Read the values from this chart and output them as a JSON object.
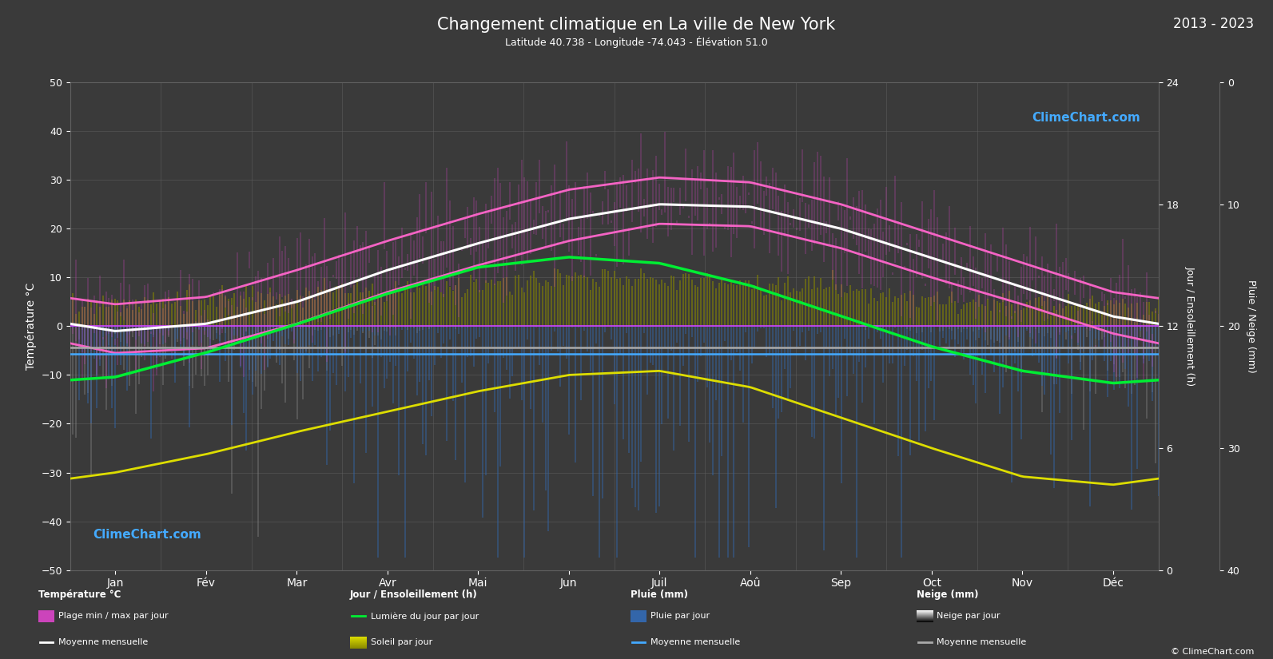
{
  "title": "Changement climatique en La ville de New York",
  "subtitle": "Latitude 40.738 - Longitude -74.043 - Élévation 51.0",
  "year_range": "2013 - 2023",
  "background_color": "#3a3a3a",
  "plot_bg_color": "#3a3a3a",
  "text_color": "#ffffff",
  "grid_color": "#606060",
  "months": [
    "Jan",
    "Fév",
    "Mar",
    "Avr",
    "Mai",
    "Jun",
    "Juil",
    "Aoû",
    "Sep",
    "Oct",
    "Nov",
    "Déc"
  ],
  "temp_ylim": [
    -50,
    50
  ],
  "sun_ylim": [
    0,
    24
  ],
  "precip_ylim_max": 40,
  "temp_mean": [
    -1.0,
    0.5,
    5.0,
    11.5,
    17.0,
    22.0,
    25.0,
    24.5,
    20.0,
    14.0,
    8.0,
    2.0
  ],
  "temp_max_mean": [
    4.5,
    6.0,
    11.5,
    17.5,
    23.0,
    28.0,
    30.5,
    29.5,
    25.0,
    19.0,
    13.0,
    7.0
  ],
  "temp_min_mean": [
    -5.5,
    -4.5,
    0.5,
    7.0,
    12.5,
    17.5,
    21.0,
    20.5,
    16.0,
    10.0,
    4.5,
    -1.5
  ],
  "temp_max_abs": [
    17,
    19,
    25,
    31,
    35,
    38,
    40,
    38,
    35,
    28,
    23,
    18
  ],
  "temp_min_abs": [
    -18,
    -16,
    -10,
    -2,
    3,
    9,
    15,
    14,
    6,
    -1,
    -7,
    -13
  ],
  "daylight": [
    9.5,
    10.7,
    12.1,
    13.6,
    14.9,
    15.4,
    15.1,
    14.0,
    12.5,
    11.0,
    9.8,
    9.2
  ],
  "sunshine_mean": [
    4.8,
    5.7,
    6.8,
    7.8,
    8.8,
    9.6,
    9.8,
    9.0,
    7.5,
    6.0,
    4.6,
    4.2
  ],
  "rain_max_daily": [
    25,
    22,
    30,
    35,
    40,
    50,
    55,
    55,
    45,
    35,
    30,
    28
  ],
  "rain_mean_line": [
    4.5,
    4.5,
    4.5,
    4.5,
    4.5,
    4.5,
    4.5,
    4.5,
    4.5,
    4.5,
    4.5,
    4.5
  ],
  "snow_max_daily": [
    20,
    18,
    15,
    2,
    0,
    0,
    0,
    0,
    0,
    1,
    8,
    18
  ],
  "snow_mean_line": [
    3.5,
    3.5,
    3.5,
    3.5,
    3.5,
    3.5,
    3.5,
    3.5,
    3.5,
    3.5,
    3.5,
    3.5
  ],
  "temp_bar_color": "#cc44bb",
  "sunshine_bar_color": "#888800",
  "rain_bar_color": "#3366aa",
  "snow_bar_color": "#888888",
  "daylight_line_color": "#00ee33",
  "sunshine_line_color": "#dddd00",
  "temp_max_line_color": "#ff66cc",
  "temp_min_line_color": "#ff66cc",
  "temp_mean_line_color": "#ffffff",
  "rain_mean_line_color": "#44aaff",
  "snow_mean_line_color": "#aaaaaa",
  "watermark_color": "#44aaff",
  "watermark_text": "ClimeChart.com",
  "copyright_text": "© ClimeChart.com"
}
